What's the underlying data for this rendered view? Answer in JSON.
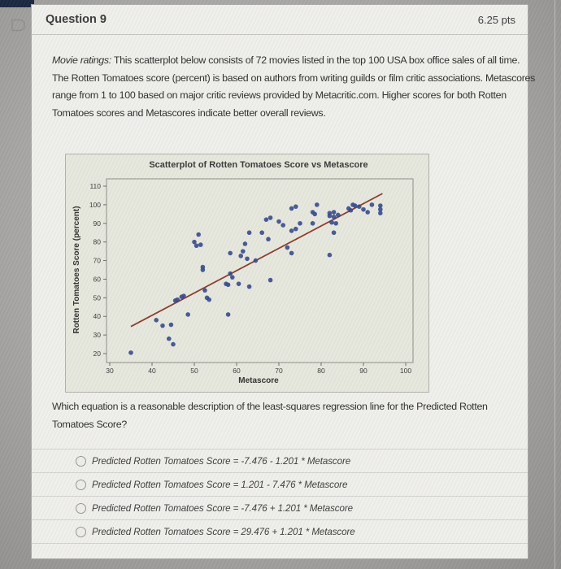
{
  "header": {
    "title": "Question 9",
    "points": "6.25 pts"
  },
  "body": {
    "intro_italic": "Movie ratings:",
    "intro_rest": " This scatterplot below consists of 72 movies listed in the top 100 USA box office sales of all time. The Rotten Tomatoes score (percent) is based on authors from writing guilds or film critic associations. Metascores range from 1 to 100 based on major critic reviews provided by Metacritic.com. Higher scores for both Rotten Tomatoes scores and Metascores indicate better overall reviews.",
    "prompt": "Which equation is a reasonable description of the least-squares regression line for the Predicted Rotten Tomatoes Score?"
  },
  "answers": [
    {
      "label": "Predicted Rotten Tomatoes Score = -7.476 - 1.201 * Metascore"
    },
    {
      "label": "Predicted Rotten Tomatoes Score = 1.201 - 7.476 * Metascore"
    },
    {
      "label": "Predicted Rotten Tomatoes Score = -7.476 + 1.201 * Metascore"
    },
    {
      "label": "Predicted Rotten Tomatoes Score = 29.476 + 1.201 * Metascore"
    }
  ],
  "icons": {
    "flag_question": "bookmark-flag-outline",
    "radio": "empty-circle"
  },
  "colors": {
    "corner_strip_navy": "#1b2740",
    "card_background": "#f0efec",
    "chart_background": "#e6e8de",
    "divider": "#d4d3d1"
  },
  "chart_data": {
    "type": "scatter",
    "title": "Scatterplot of Rotten Tomatoes Score vs Metascore",
    "xlabel": "Metascore",
    "ylabel": "Rotten Tomatoes Score (percent)",
    "xticks": [
      30,
      40,
      50,
      60,
      70,
      80,
      90,
      100
    ],
    "yticks": [
      20,
      30,
      40,
      50,
      60,
      70,
      80,
      90,
      100,
      110
    ],
    "xlim": [
      27,
      102
    ],
    "ylim": [
      15,
      114
    ],
    "grid": false,
    "legend": null,
    "colors": {
      "dot": "#35498c",
      "trend": "#8d3b2b"
    },
    "trend_line": {
      "slope": 1.201,
      "intercept": -7.476,
      "x_start": 35,
      "x_end": 94.5
    },
    "points": [
      [
        35,
        20.5
      ],
      [
        41,
        38
      ],
      [
        42.5,
        35
      ],
      [
        44,
        28
      ],
      [
        44.5,
        35.5
      ],
      [
        45,
        25
      ],
      [
        48.5,
        41
      ],
      [
        45.5,
        48.5
      ],
      [
        46,
        49
      ],
      [
        47,
        50.5
      ],
      [
        47.5,
        51
      ],
      [
        50,
        80
      ],
      [
        50.5,
        78
      ],
      [
        51,
        84
      ],
      [
        51.5,
        78.5
      ],
      [
        52,
        66.5
      ],
      [
        52,
        65
      ],
      [
        52.5,
        54
      ],
      [
        53,
        50
      ],
      [
        53.5,
        49
      ],
      [
        57.5,
        57.5
      ],
      [
        58,
        57
      ],
      [
        58.5,
        63
      ],
      [
        59,
        61
      ],
      [
        58,
        41
      ],
      [
        58.5,
        74
      ],
      [
        60.5,
        57.5
      ],
      [
        61,
        72.5
      ],
      [
        61.5,
        75
      ],
      [
        62,
        79
      ],
      [
        63,
        85
      ],
      [
        62.5,
        71
      ],
      [
        63,
        56
      ],
      [
        64.5,
        70
      ],
      [
        66,
        85
      ],
      [
        67.5,
        81.5
      ],
      [
        67,
        92
      ],
      [
        68,
        93
      ],
      [
        68,
        59.5
      ],
      [
        70,
        91
      ],
      [
        71,
        89
      ],
      [
        72,
        77
      ],
      [
        73,
        74
      ],
      [
        73,
        86
      ],
      [
        74,
        87
      ],
      [
        73,
        98
      ],
      [
        74,
        99
      ],
      [
        75,
        90
      ],
      [
        78,
        96
      ],
      [
        78.5,
        95
      ],
      [
        79,
        100
      ],
      [
        78,
        90
      ],
      [
        82,
        95.5
      ],
      [
        83,
        96
      ],
      [
        82,
        94
      ],
      [
        83,
        93.5
      ],
      [
        84,
        94.5
      ],
      [
        82.5,
        90.5
      ],
      [
        83.5,
        90
      ],
      [
        83,
        85
      ],
      [
        82,
        73
      ],
      [
        86.5,
        98
      ],
      [
        87,
        97
      ],
      [
        87.5,
        100
      ],
      [
        88,
        99.5
      ],
      [
        89,
        99
      ],
      [
        90,
        97.5
      ],
      [
        91,
        96
      ],
      [
        92,
        100
      ],
      [
        94,
        99.5
      ],
      [
        94,
        97.5
      ],
      [
        94,
        95.5
      ]
    ]
  }
}
